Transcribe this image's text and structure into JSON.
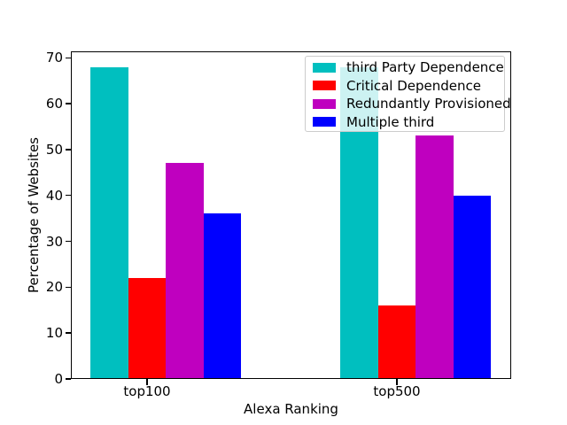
{
  "figure": {
    "background": "#ffffff",
    "title": ""
  },
  "chart_data": {
    "type": "bar",
    "title": "",
    "xlabel": "Alexa Ranking",
    "ylabel": "Percentage of Websites",
    "categories": [
      "top100",
      "top500"
    ],
    "series": [
      {
        "name": "third Party Dependence",
        "color": "#00bfbf",
        "values": [
          68,
          68
        ]
      },
      {
        "name": "Critical Dependence",
        "color": "#ff0000",
        "values": [
          22,
          16
        ]
      },
      {
        "name": "Redundantly Provisioned",
        "color": "#bf00bf",
        "values": [
          47,
          53
        ]
      },
      {
        "name": "Multiple third",
        "color": "#0000ff",
        "values": [
          36,
          40
        ]
      }
    ],
    "yticks": [
      0,
      10,
      20,
      30,
      40,
      50,
      60,
      70
    ],
    "ylim": [
      0,
      71.4
    ],
    "grid": false,
    "legend_position": "upper right",
    "legend_background_alpha": 0.8,
    "legend_border_color": "#cccccc"
  }
}
